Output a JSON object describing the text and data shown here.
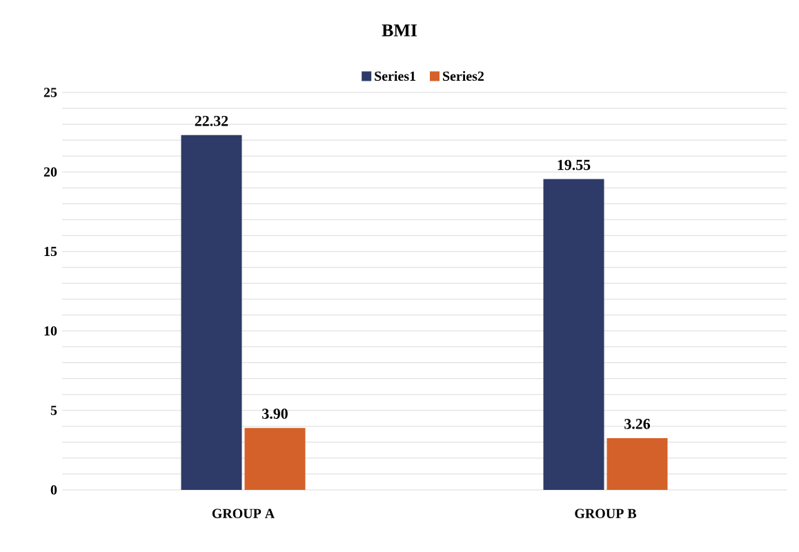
{
  "chart_data": {
    "type": "bar",
    "title": "BMI",
    "categories": [
      "GROUP A",
      "GROUP B"
    ],
    "series": [
      {
        "name": "Series1",
        "color": "#2e3b68",
        "values": [
          22.32,
          19.55
        ],
        "value_labels": [
          "22.32",
          "19.55"
        ]
      },
      {
        "name": "Series2",
        "color": "#d4612a",
        "values": [
          3.9,
          3.26
        ],
        "value_labels": [
          "3.90",
          "3.26"
        ]
      }
    ],
    "ylim": [
      0,
      25
    ],
    "yticks": [
      0,
      {
        "value": 1,
        "label": null
      },
      {
        "value": 2,
        "label": null
      },
      {
        "value": 3,
        "label": null
      },
      {
        "value": 4,
        "label": null
      },
      5,
      {
        "value": 6,
        "label": null
      },
      {
        "value": 7,
        "label": null
      },
      {
        "value": 8,
        "label": null
      },
      {
        "value": 9,
        "label": null
      },
      10,
      {
        "value": 11,
        "label": null
      },
      {
        "value": 12,
        "label": null
      },
      {
        "value": 13,
        "label": null
      },
      {
        "value": 14,
        "label": null
      },
      15,
      {
        "value": 16,
        "label": null
      },
      {
        "value": 17,
        "label": null
      },
      {
        "value": 18,
        "label": null
      },
      {
        "value": 19,
        "label": null
      },
      20,
      {
        "value": 21,
        "label": null
      },
      {
        "value": 22,
        "label": null
      },
      {
        "value": 23,
        "label": null
      },
      {
        "value": 24,
        "label": null
      },
      25
    ],
    "grid": true,
    "legend": "top"
  }
}
